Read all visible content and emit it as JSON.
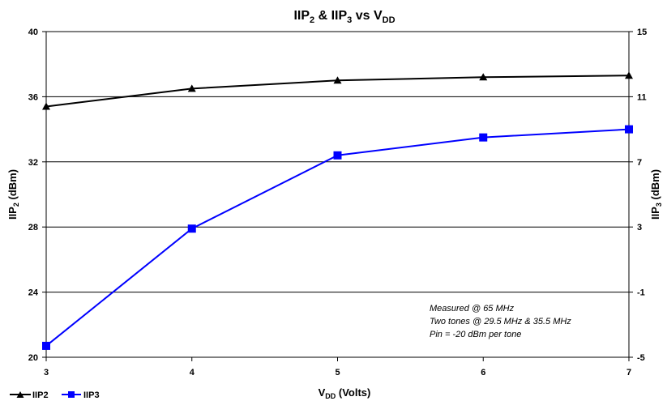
{
  "chart_data": {
    "type": "line",
    "title": {
      "main": "IIP",
      "sub1": "2",
      "mid1": " & IIP",
      "sub2": "3",
      "mid2": " vs V",
      "sub3": "DD"
    },
    "xlabel": {
      "main": "V",
      "sub": "DD",
      "rest": " (Volts)"
    },
    "ylabel_left": {
      "main": "IIP",
      "sub": "2",
      "rest": " (dBm)"
    },
    "ylabel_right": {
      "main": "IIP",
      "sub": "3",
      "rest": " (dBm)"
    },
    "x": [
      3,
      4,
      5,
      6,
      7
    ],
    "x_ticks": [
      "3",
      "4",
      "5",
      "6",
      "7"
    ],
    "y_left_ticks": [
      "20",
      "24",
      "28",
      "32",
      "36",
      "40"
    ],
    "y_right_ticks": [
      "-5",
      "-1",
      "3",
      "7",
      "11",
      "15"
    ],
    "xlim": [
      3,
      7
    ],
    "ylim_left": [
      20,
      40
    ],
    "ylim_right": [
      -5,
      15
    ],
    "grid": "horizontal",
    "legend_position": "bottom-left",
    "series": [
      {
        "name": "IIP2",
        "axis": "left",
        "color": "#000000",
        "marker": "triangle",
        "values": [
          35.4,
          36.5,
          37.0,
          37.2,
          37.3
        ]
      },
      {
        "name": "IIP3",
        "axis": "right",
        "color": "#0000ff",
        "marker": "square",
        "values": [
          -4.3,
          2.9,
          7.4,
          8.5,
          9.0
        ]
      }
    ],
    "annotations": [
      "Measured @ 65 MHz",
      "Two tones @ 29.5 MHz & 35.5 MHz",
      "Pin = -20 dBm per tone"
    ]
  }
}
